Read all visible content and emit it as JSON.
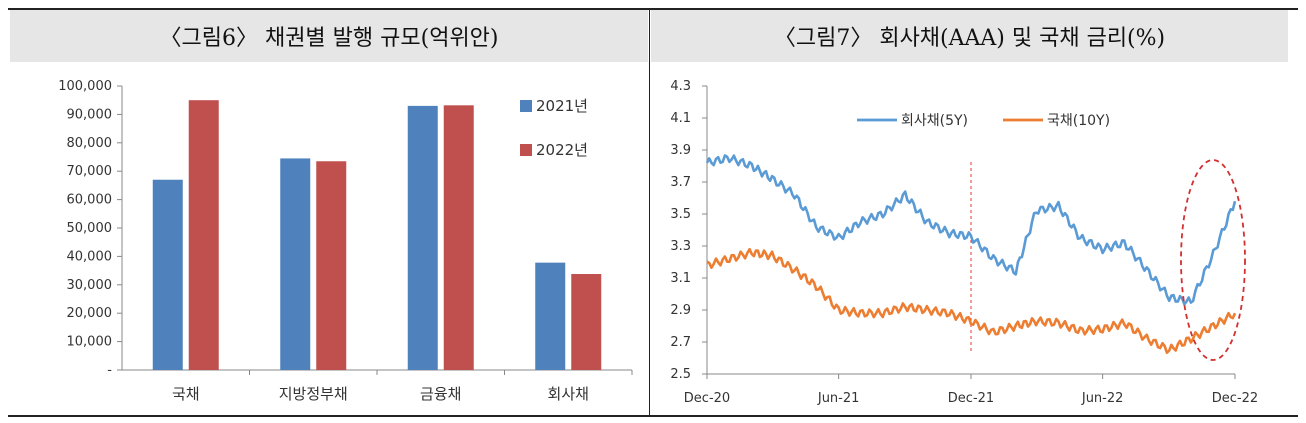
{
  "panels": {
    "left_title": "〈그림6〉 채권별 발행 규모(억위안)",
    "right_title": "〈그림7〉 회사채(AAA) 및 국채 금리(%)"
  },
  "chart_data": [
    {
      "type": "bar",
      "title": "〈그림6〉 채권별 발행 규모(억위안)",
      "categories": [
        "국채",
        "지방정부채",
        "금융채",
        "회사채"
      ],
      "series": [
        {
          "name": "2021년",
          "color": "#4f81bd",
          "values": [
            67000,
            74500,
            93000,
            37800
          ]
        },
        {
          "name": "2022년",
          "color": "#c0504d",
          "values": [
            95000,
            73500,
            93200,
            33800
          ]
        }
      ],
      "ylim": [
        0,
        100000
      ],
      "yticks": [
        "-",
        "10,000",
        "20,000",
        "30,000",
        "40,000",
        "50,000",
        "60,000",
        "70,000",
        "80,000",
        "90,000",
        "100,000"
      ],
      "xlabel": "",
      "ylabel": "",
      "legend": "top-right",
      "grid": false
    },
    {
      "type": "line",
      "title": "〈그림7〉 회사채(AAA) 및 국채 금리(%)",
      "x": [
        "2020-12-01",
        "2021-01-01",
        "2021-02-01",
        "2021-03-01",
        "2021-04-01",
        "2021-05-01",
        "2021-06-01",
        "2021-07-01",
        "2021-08-01",
        "2021-09-01",
        "2021-10-01",
        "2021-11-01",
        "2021-12-01",
        "2022-01-01",
        "2022-02-01",
        "2022-03-01",
        "2022-04-01",
        "2022-05-01",
        "2022-06-01",
        "2022-07-01",
        "2022-08-01",
        "2022-09-01",
        "2022-10-01",
        "2022-11-01",
        "2022-12-01"
      ],
      "series": [
        {
          "name": "회사채(5Y)",
          "color": "#5b9bd5",
          "values": [
            3.82,
            3.85,
            3.8,
            3.72,
            3.62,
            3.42,
            3.35,
            3.45,
            3.5,
            3.62,
            3.45,
            3.38,
            3.36,
            3.22,
            3.14,
            3.52,
            3.55,
            3.35,
            3.28,
            3.32,
            3.15,
            2.98,
            2.95,
            3.25,
            3.58
          ]
        },
        {
          "name": "국채(10Y)",
          "color": "#ed7d31",
          "values": [
            3.18,
            3.22,
            3.26,
            3.24,
            3.15,
            3.05,
            2.9,
            2.88,
            2.88,
            2.92,
            2.9,
            2.88,
            2.83,
            2.76,
            2.8,
            2.83,
            2.82,
            2.77,
            2.78,
            2.82,
            2.72,
            2.65,
            2.72,
            2.8,
            2.88
          ]
        }
      ],
      "xticks": [
        "Dec-20",
        "Jun-21",
        "Dec-21",
        "Jun-22",
        "Dec-22"
      ],
      "ylim": [
        2.5,
        4.3
      ],
      "yticks": [
        "2.5",
        "2.7",
        "2.9",
        "3.1",
        "3.3",
        "3.5",
        "3.7",
        "3.9",
        "4.1",
        "4.3"
      ],
      "vline_x": "2021-12-01",
      "xlabel": "",
      "ylabel": "",
      "legend": "top-center",
      "grid": false
    }
  ]
}
